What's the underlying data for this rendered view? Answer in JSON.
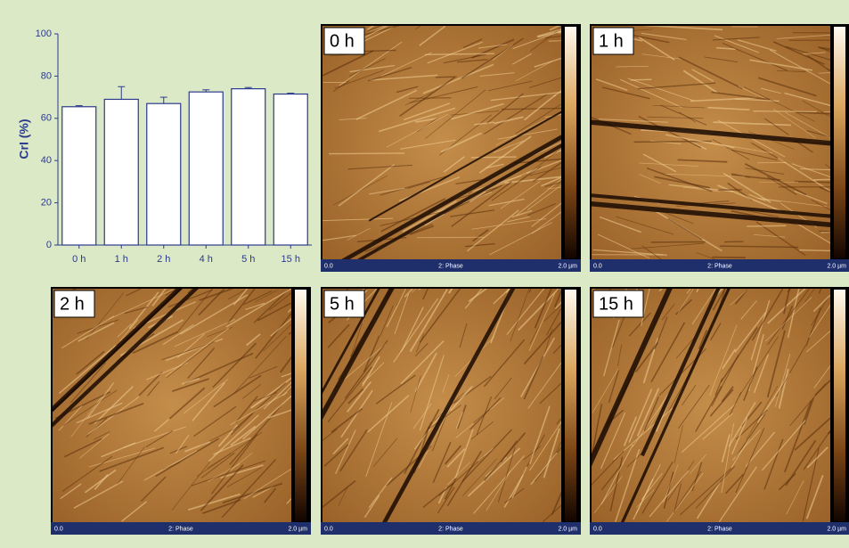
{
  "chart_data": {
    "type": "bar",
    "y_label": "CrI (%)",
    "categories": [
      "0 h",
      "1 h",
      "2 h",
      "4 h",
      "5 h",
      "15 h"
    ],
    "values": [
      65.5,
      69,
      67,
      72.5,
      74,
      71.5
    ],
    "errors": [
      0.5,
      6,
      3,
      1,
      0.6,
      0.4
    ],
    "color": "#2b3a8c",
    "ylim": [
      0,
      100
    ],
    "yticks": [
      0,
      20,
      40,
      60,
      80,
      100
    ]
  },
  "panels": [
    {
      "label": "0 h",
      "footer": [
        "0.0",
        "2: Phase",
        "2.0 µm"
      ]
    },
    {
      "label": "1 h",
      "footer": [
        "0.0",
        "2: Phase",
        "2.0 µm"
      ]
    },
    {
      "label": "2 h",
      "footer": [
        "0.0",
        "2: Phase",
        "2.0 µm"
      ]
    },
    {
      "label": "5 h",
      "footer": [
        "0.0",
        "2: Phase",
        "2.0 µm"
      ]
    },
    {
      "label": "15 h",
      "footer": [
        "0.0",
        "2: Phase",
        "2.0 µm"
      ]
    }
  ]
}
